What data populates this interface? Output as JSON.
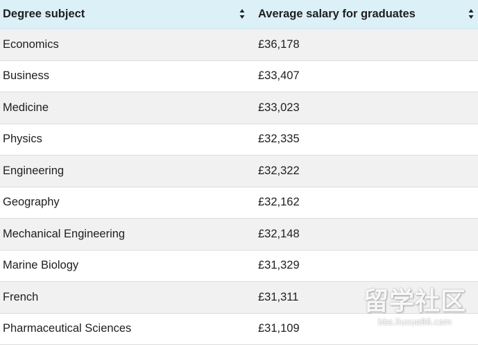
{
  "table": {
    "headers": {
      "subject": "Degree subject",
      "salary": "Average salary for graduates"
    },
    "rows": [
      {
        "subject": "Economics",
        "salary": "£36,178"
      },
      {
        "subject": "Business",
        "salary": "£33,407"
      },
      {
        "subject": "Medicine",
        "salary": "£33,023"
      },
      {
        "subject": "Physics",
        "salary": "£32,335"
      },
      {
        "subject": "Engineering",
        "salary": "£32,322"
      },
      {
        "subject": "Geography",
        "salary": "£32,162"
      },
      {
        "subject": "Mechanical Engineering",
        "salary": "£32,148"
      },
      {
        "subject": "Marine Biology",
        "salary": "£31,329"
      },
      {
        "subject": "French",
        "salary": "£31,311"
      },
      {
        "subject": "Pharmaceutical Sciences",
        "salary": "£31,109"
      }
    ]
  },
  "icons": {
    "sort": "sort-icon"
  },
  "watermark": {
    "main": "留学社区",
    "url": "bbs.liuxue86.com"
  },
  "colors": {
    "header_bg": "#dcf0f8",
    "row_alt_bg": "#f1f1f1",
    "row_bg": "#ffffff",
    "text": "#1e1e1e"
  }
}
